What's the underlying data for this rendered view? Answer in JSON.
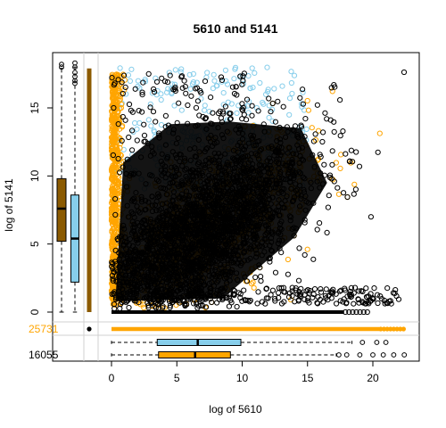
{
  "chart_data": {
    "type": "scatter",
    "title": "5610  and 5141",
    "xlabel": "log of 5610",
    "ylabel": "log of 5141",
    "xlim": [
      -6.2,
      23.4
    ],
    "ylim": [
      -1.0,
      18.5
    ],
    "x_ticks": [
      0,
      5,
      10,
      15,
      20
    ],
    "y_ticks": [
      0,
      5,
      10,
      15
    ],
    "colors": {
      "primary": "#FFA500",
      "primary_box": "#8B5A00",
      "secondary": "#87CEEB",
      "points": "#000000"
    },
    "series": [
      {
        "color": "#FFA500",
        "zero_y_count_label": "25731"
      },
      {
        "color": "#000000",
        "zero_y_count_label": "16055"
      }
    ],
    "y_boxplots": [
      {
        "color": "#8B5A00",
        "q1": 5.2,
        "median": 7.6,
        "q3": 9.8,
        "whisker_low": 0.0,
        "whisker_high": 17.9,
        "outliers": [
          18.0,
          18.2
        ]
      },
      {
        "color": "#87CEEB",
        "q1": 2.2,
        "median": 5.4,
        "q3": 8.6,
        "whisker_low": 0.0,
        "whisker_high": 18.0,
        "outliers": [
          16.8,
          17.0,
          17.3,
          17.6,
          18.0,
          18.3
        ]
      }
    ],
    "x_boxplots": [
      {
        "color": "#87CEEB",
        "q1": 3.5,
        "median": 6.6,
        "q3": 9.9,
        "whisker_low": 0.0,
        "whisker_high": 18.4,
        "outliers": [
          19.2,
          20.3,
          21.0
        ]
      },
      {
        "color": "#FFA500",
        "q1": 3.6,
        "median": 6.4,
        "q3": 9.1,
        "whisker_low": 0.0,
        "whisker_high": 17.2,
        "outliers": [
          17.4,
          18.0,
          19.0,
          20.0,
          20.8,
          21.6,
          22.4
        ]
      }
    ]
  }
}
